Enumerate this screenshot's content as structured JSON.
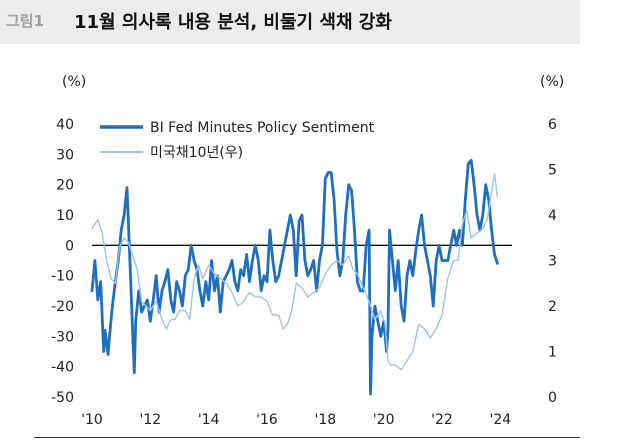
{
  "figure": {
    "label": "그림1",
    "title": "11월 의사록 내용 분석, 비둘기 색채 강화"
  },
  "chart_data": {
    "type": "line",
    "left_unit": "(%)",
    "right_unit": "(%)",
    "left_axis": {
      "ylim": [
        -50,
        40
      ],
      "ticks": [
        40,
        30,
        20,
        10,
        0,
        -10,
        -20,
        -30,
        -40,
        -50
      ]
    },
    "right_axis": {
      "ylim": [
        0,
        6
      ],
      "ticks": [
        6,
        5,
        4,
        3,
        2,
        1,
        0
      ]
    },
    "x_ticks": [
      "'10",
      "'12",
      "'14",
      "'16",
      "'18",
      "'20",
      "'22",
      "'24"
    ],
    "x_tick_years": [
      2010,
      2012,
      2014,
      2016,
      2018,
      2020,
      2022,
      2024
    ],
    "xlim": [
      2010,
      2024.4
    ],
    "legend": {
      "position": "top-left"
    },
    "series": [
      {
        "name": "BI Fed Minutes Policy Sentiment",
        "axis": "left",
        "color": "#1f6fc1",
        "x": [
          2010.0,
          2010.1,
          2010.2,
          2010.3,
          2010.4,
          2010.45,
          2010.55,
          2010.6,
          2010.7,
          2010.8,
          2010.9,
          2011.0,
          2011.1,
          2011.2,
          2011.3,
          2011.4,
          2011.45,
          2011.5,
          2011.6,
          2011.65,
          2011.7,
          2011.8,
          2011.9,
          2012.0,
          2012.1,
          2012.2,
          2012.3,
          2012.4,
          2012.5,
          2012.6,
          2012.7,
          2012.8,
          2012.9,
          2013.0,
          2013.1,
          2013.2,
          2013.3,
          2013.4,
          2013.5,
          2013.6,
          2013.7,
          2013.8,
          2013.9,
          2014.0,
          2014.1,
          2014.2,
          2014.3,
          2014.4,
          2014.5,
          2014.6,
          2014.7,
          2014.8,
          2014.9,
          2015.0,
          2015.1,
          2015.2,
          2015.3,
          2015.4,
          2015.5,
          2015.6,
          2015.7,
          2015.8,
          2015.9,
          2016.0,
          2016.1,
          2016.2,
          2016.3,
          2016.4,
          2016.5,
          2016.6,
          2016.7,
          2016.8,
          2016.9,
          2017.0,
          2017.1,
          2017.2,
          2017.3,
          2017.4,
          2017.5,
          2017.6,
          2017.7,
          2017.8,
          2017.9,
          2018.0,
          2018.1,
          2018.2,
          2018.3,
          2018.4,
          2018.5,
          2018.6,
          2018.7,
          2018.8,
          2018.9,
          2019.0,
          2019.1,
          2019.2,
          2019.3,
          2019.4,
          2019.5,
          2019.55,
          2019.6,
          2019.7,
          2019.8,
          2019.9,
          2020.0,
          2020.1,
          2020.15,
          2020.2,
          2020.3,
          2020.4,
          2020.5,
          2020.6,
          2020.7,
          2020.8,
          2020.9,
          2021.0,
          2021.1,
          2021.2,
          2021.3,
          2021.4,
          2021.5,
          2021.6,
          2021.7,
          2021.8,
          2021.9,
          2022.0,
          2022.1,
          2022.2,
          2022.3,
          2022.4,
          2022.5,
          2022.6,
          2022.7,
          2022.8,
          2022.9,
          2023.0,
          2023.1,
          2023.2,
          2023.3,
          2023.4,
          2023.5,
          2023.6,
          2023.7,
          2023.8,
          2023.9
        ],
        "values": [
          -15,
          -5,
          -18,
          -12,
          -35,
          -28,
          -36,
          -30,
          -20,
          -12,
          -5,
          5,
          10,
          19,
          -5,
          -30,
          -42,
          -25,
          -15,
          -18,
          -22,
          -20,
          -18,
          -25,
          -18,
          -10,
          -22,
          -15,
          -12,
          -8,
          -18,
          -22,
          -12,
          -15,
          -20,
          -10,
          -8,
          0,
          -5,
          -8,
          -15,
          -20,
          -12,
          -18,
          -5,
          -15,
          -10,
          -22,
          -12,
          -10,
          -8,
          -5,
          -12,
          -15,
          -8,
          -10,
          -3,
          -12,
          -5,
          0,
          -5,
          -15,
          -10,
          -12,
          5,
          -5,
          -12,
          -10,
          -5,
          0,
          5,
          10,
          5,
          -10,
          8,
          10,
          -5,
          -10,
          -8,
          -5,
          -15,
          -5,
          0,
          22,
          24,
          24,
          15,
          -2,
          -10,
          -5,
          10,
          20,
          18,
          5,
          -12,
          -15,
          -15,
          0,
          5,
          -49,
          -30,
          -20,
          -25,
          -30,
          -25,
          -35,
          -28,
          5,
          -5,
          -15,
          -5,
          -20,
          -25,
          -10,
          -5,
          -10,
          -2,
          5,
          10,
          0,
          -5,
          -10,
          -20,
          -5,
          0,
          -5,
          -5,
          -5,
          0,
          5,
          0,
          5,
          0,
          15,
          27,
          28,
          20,
          10,
          5,
          10,
          20,
          15,
          5,
          -3,
          -6
        ]
      },
      {
        "name": "미국채10년(우)",
        "axis": "right",
        "color": "#9cc4ec",
        "x": [
          2010.0,
          2010.2,
          2010.35,
          2010.5,
          2010.65,
          2010.8,
          2010.95,
          2011.1,
          2011.25,
          2011.4,
          2011.55,
          2011.7,
          2011.85,
          2012.0,
          2012.2,
          2012.4,
          2012.55,
          2012.7,
          2012.85,
          2013.0,
          2013.2,
          2013.35,
          2013.5,
          2013.65,
          2013.8,
          2014.0,
          2014.2,
          2014.4,
          2014.6,
          2014.8,
          2015.0,
          2015.2,
          2015.4,
          2015.6,
          2015.8,
          2016.0,
          2016.2,
          2016.4,
          2016.55,
          2016.7,
          2016.85,
          2017.0,
          2017.2,
          2017.4,
          2017.6,
          2017.8,
          2018.0,
          2018.2,
          2018.4,
          2018.6,
          2018.8,
          2018.95,
          2019.1,
          2019.3,
          2019.5,
          2019.7,
          2019.9,
          2020.05,
          2020.15,
          2020.25,
          2020.4,
          2020.6,
          2020.8,
          2021.0,
          2021.2,
          2021.4,
          2021.6,
          2021.8,
          2022.0,
          2022.2,
          2022.4,
          2022.55,
          2022.7,
          2022.85,
          2023.0,
          2023.2,
          2023.4,
          2023.55,
          2023.7,
          2023.8,
          2023.9
        ],
        "values": [
          3.7,
          3.9,
          3.6,
          3.0,
          2.6,
          2.5,
          3.3,
          3.5,
          3.4,
          3.1,
          2.8,
          2.1,
          2.0,
          1.9,
          2.1,
          1.7,
          1.5,
          1.7,
          1.7,
          1.9,
          1.9,
          1.7,
          2.6,
          2.9,
          2.6,
          2.9,
          2.7,
          2.6,
          2.5,
          2.3,
          2.0,
          2.1,
          2.3,
          2.2,
          2.2,
          2.1,
          1.8,
          1.8,
          1.5,
          1.6,
          1.9,
          2.5,
          2.4,
          2.2,
          2.3,
          2.4,
          2.7,
          2.9,
          3.0,
          2.9,
          3.1,
          2.8,
          2.7,
          2.4,
          2.1,
          1.7,
          1.9,
          1.6,
          0.8,
          0.7,
          0.7,
          0.6,
          0.8,
          1.0,
          1.6,
          1.5,
          1.3,
          1.5,
          1.8,
          2.6,
          3.0,
          3.0,
          3.8,
          4.1,
          3.5,
          3.6,
          3.7,
          3.9,
          4.5,
          4.9,
          4.4
        ]
      }
    ]
  }
}
